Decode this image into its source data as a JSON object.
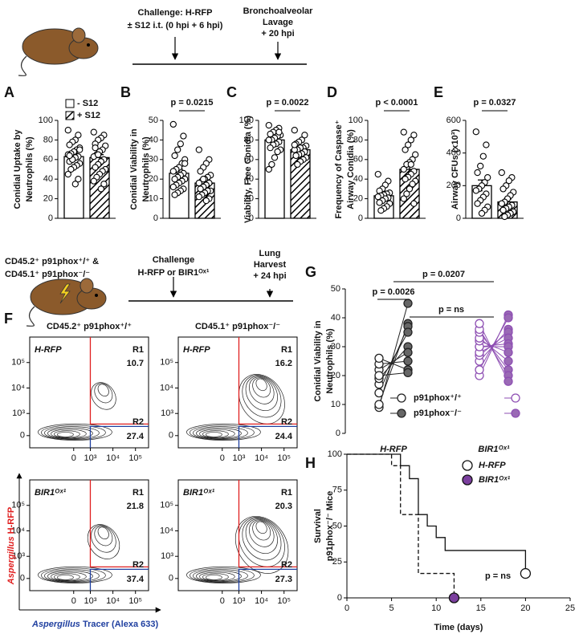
{
  "top_schematic": {
    "challenge": [
      "Challenge: H-RFP",
      "± S12 i.t. (0 hpi + 6 hpi)"
    ],
    "lavage": [
      "Bronchoalveolar",
      "Lavage",
      "+ 20 hpi"
    ]
  },
  "bottom_schematic": {
    "mice": [
      "CD45.2⁺ p91phox⁺/⁺ &",
      "CD45.1⁺ p91phox⁻/⁻"
    ],
    "challenge": [
      "Challenge",
      "H-RFP or BIR1ᴼˣ¹"
    ],
    "harvest": [
      "Lung",
      "Harvest",
      "+ 24 hpi"
    ]
  },
  "flow_panel": {
    "label": "F",
    "columns": [
      "CD45.2⁺ p91phox⁺/⁺",
      "CD45.1⁺ p91phox⁻/⁻"
    ],
    "rows": [
      "H-RFP",
      "BIR1ᴼˣ¹"
    ],
    "gates": [
      "R1",
      "R2"
    ],
    "plots": [
      {
        "values": [
          10.7,
          27.4
        ]
      },
      {
        "values": [
          16.2,
          24.4
        ]
      },
      {
        "values": [
          21.8,
          37.4
        ]
      },
      {
        "values": [
          20.3,
          27.3
        ]
      }
    ],
    "xticks": [
      0,
      {
        "value": 1000,
        "label": "10³"
      },
      {
        "value": 10000,
        "label": "10⁴"
      },
      {
        "value": 100000,
        "label": "10⁵"
      }
    ],
    "yticks": [
      0,
      {
        "value": 1000,
        "label": "10³"
      },
      {
        "value": 10000,
        "label": "10⁴"
      },
      {
        "value": 100000,
        "label": "10⁵"
      }
    ],
    "ylabel": [
      "Aspergillus",
      " H-RFP"
    ],
    "xlabel": [
      "Aspergillus",
      " Tracer (Alexa 633)"
    ]
  },
  "chart_data": [
    {
      "type": "bar",
      "label": "A",
      "ylabel": [
        "Conidial Uptake by",
        "Neutrophils (%)"
      ],
      "ylim": [
        0,
        100
      ],
      "yticks": [
        0,
        20,
        40,
        60,
        80,
        100
      ],
      "series": [
        {
          "name": "- S12",
          "pattern": "none",
          "values": [
            63
          ],
          "errors": [
            3
          ],
          "points": [
            90,
            85,
            80,
            78,
            75,
            72,
            70,
            68,
            66,
            65,
            63,
            62,
            60,
            58,
            56,
            54,
            52,
            50,
            45,
            40,
            35,
            60,
            64,
            70
          ]
        },
        {
          "name": "+ S12",
          "pattern": "hatch",
          "values": [
            62
          ],
          "errors": [
            3
          ],
          "points": [
            88,
            85,
            82,
            80,
            76,
            74,
            70,
            68,
            65,
            63,
            60,
            58,
            55,
            52,
            50,
            48,
            45,
            42,
            38,
            35,
            30,
            65,
            72
          ]
        }
      ]
    },
    {
      "type": "bar",
      "label": "B",
      "ylabel": [
        "Conidial Viability in",
        "Neutrophils (%)"
      ],
      "ylim": [
        0,
        50
      ],
      "yticks": [
        0,
        10,
        20,
        30,
        40,
        50
      ],
      "annotation": "p = 0.0215",
      "series": [
        {
          "pattern": "none",
          "values": [
            23
          ],
          "errors": [
            2
          ],
          "points": [
            48,
            42,
            38,
            35,
            32,
            30,
            28,
            26,
            25,
            24,
            23,
            22,
            21,
            20,
            20,
            19,
            18,
            17,
            16,
            15,
            14,
            13,
            12,
            28
          ]
        },
        {
          "pattern": "hatch",
          "values": [
            18
          ],
          "errors": [
            1.5
          ],
          "points": [
            35,
            30,
            28,
            26,
            24,
            22,
            21,
            20,
            19,
            18,
            18,
            17,
            16,
            15,
            14,
            14,
            13,
            12,
            11,
            10,
            9,
            20
          ]
        }
      ]
    },
    {
      "type": "bar",
      "label": "C",
      "ylabel": [
        "Viability, Free Conidia (%)"
      ],
      "ylim": [
        0,
        100
      ],
      "yticks": [
        0,
        20,
        40,
        60,
        80,
        100
      ],
      "annotation": "p = 0.0022",
      "series": [
        {
          "pattern": "none",
          "values": [
            80
          ],
          "errors": [
            3
          ],
          "points": [
            95,
            92,
            90,
            88,
            86,
            85,
            84,
            82,
            80,
            80,
            78,
            76,
            75,
            72,
            70,
            68,
            62,
            55,
            50,
            88
          ]
        },
        {
          "pattern": "hatch",
          "values": [
            70
          ],
          "errors": [
            2
          ],
          "points": [
            90,
            85,
            80,
            78,
            76,
            74,
            72,
            72,
            70,
            70,
            68,
            66,
            65,
            64,
            62,
            60,
            58,
            55,
            75
          ]
        }
      ]
    },
    {
      "type": "bar",
      "label": "D",
      "ylabel": [
        "Frequency of Caspase⁺",
        "Airway Conidia (%)"
      ],
      "ylim": [
        0,
        100
      ],
      "yticks": [
        0,
        20,
        40,
        60,
        80,
        100
      ],
      "annotation": "p < 0.0001",
      "series": [
        {
          "pattern": "none",
          "values": [
            23
          ],
          "errors": [
            3
          ],
          "points": [
            45,
            38,
            34,
            30,
            28,
            26,
            25,
            24,
            23,
            22,
            21,
            20,
            18,
            16,
            15,
            12,
            10,
            8
          ]
        },
        {
          "pattern": "hatch",
          "values": [
            50
          ],
          "errors": [
            5
          ],
          "points": [
            88,
            85,
            80,
            75,
            70,
            65,
            60,
            57,
            55,
            50,
            48,
            45,
            42,
            40,
            38,
            35,
            30,
            25,
            20,
            15,
            55
          ]
        }
      ]
    },
    {
      "type": "bar",
      "label": "E",
      "ylabel": [
        "Airway CFUs (x10³)"
      ],
      "ylim": [
        0,
        600
      ],
      "yticks": [
        0,
        200,
        400,
        600
      ],
      "annotation": "p = 0.0327",
      "series": [
        {
          "pattern": "none",
          "values": [
            200
          ],
          "errors": [
            35
          ],
          "points": [
            530,
            450,
            380,
            320,
            280,
            250,
            220,
            200,
            180,
            170,
            150,
            130,
            110,
            90,
            70,
            50,
            30
          ]
        },
        {
          "pattern": "hatch",
          "values": [
            100
          ],
          "errors": [
            18
          ],
          "points": [
            280,
            250,
            230,
            200,
            180,
            160,
            140,
            120,
            100,
            90,
            80,
            70,
            60,
            50,
            40,
            30,
            20,
            10
          ]
        }
      ]
    },
    {
      "type": "paired",
      "label": "G",
      "ylabel": [
        "Conidial Viability in",
        "Neutrophils (%)"
      ],
      "ylim": [
        0,
        50
      ],
      "yticks": [
        0,
        10,
        20,
        30,
        40,
        50
      ],
      "categories": [
        "H-RFP",
        "BIR1ᴼˣ¹"
      ],
      "colors": [
        "#222222",
        "#8e4fb3"
      ],
      "fills": [
        "#666666",
        "#9a6ab5"
      ],
      "annotations": [
        "p = 0.0207",
        "p = 0.0026",
        "p = ns"
      ],
      "series": [
        {
          "name": "p91phox⁺/⁺",
          "filled": false,
          "values": [
            [
              9,
              10,
              14,
              17,
              19,
              22,
              24,
              26,
              20
            ],
            [
              20,
              22,
              25,
              27,
              28,
              30,
              30,
              32,
              33,
              35,
              36,
              38
            ]
          ]
        },
        {
          "name": "p91phox⁻/⁻",
          "filled": true,
          "values": [
            [
              45,
              38,
              37,
              35,
              30,
              28,
              25,
              22,
              21
            ],
            [
              41,
              40,
              36,
              35,
              33,
              31,
              30,
              28,
              25,
              22,
              20,
              18
            ]
          ]
        }
      ]
    },
    {
      "type": "survival",
      "label": "H",
      "ylabel": [
        "Survival",
        "p91phox⁻/⁻ Mice"
      ],
      "xlabel": "Time (days)",
      "xlim": [
        0,
        25
      ],
      "xticks": [
        0,
        5,
        10,
        15,
        20,
        25
      ],
      "ylim": [
        0,
        100
      ],
      "yticks": [
        0,
        25,
        50,
        75,
        100
      ],
      "annotation": "p = ns",
      "series": [
        {
          "name": "H-RFP",
          "dashed": false,
          "color": "#111111",
          "marker": "#ffffff",
          "x": [
            0,
            6,
            7,
            8,
            9,
            10,
            11,
            20
          ],
          "values": [
            100,
            92,
            83,
            58,
            50,
            42,
            33,
            17
          ]
        },
        {
          "name": "BIR1ᴼˣ¹",
          "dashed": true,
          "color": "#111111",
          "marker": "#7b3f9e",
          "x": [
            0,
            5,
            6,
            8,
            12
          ],
          "values": [
            100,
            92,
            58,
            17,
            0
          ]
        }
      ]
    }
  ]
}
